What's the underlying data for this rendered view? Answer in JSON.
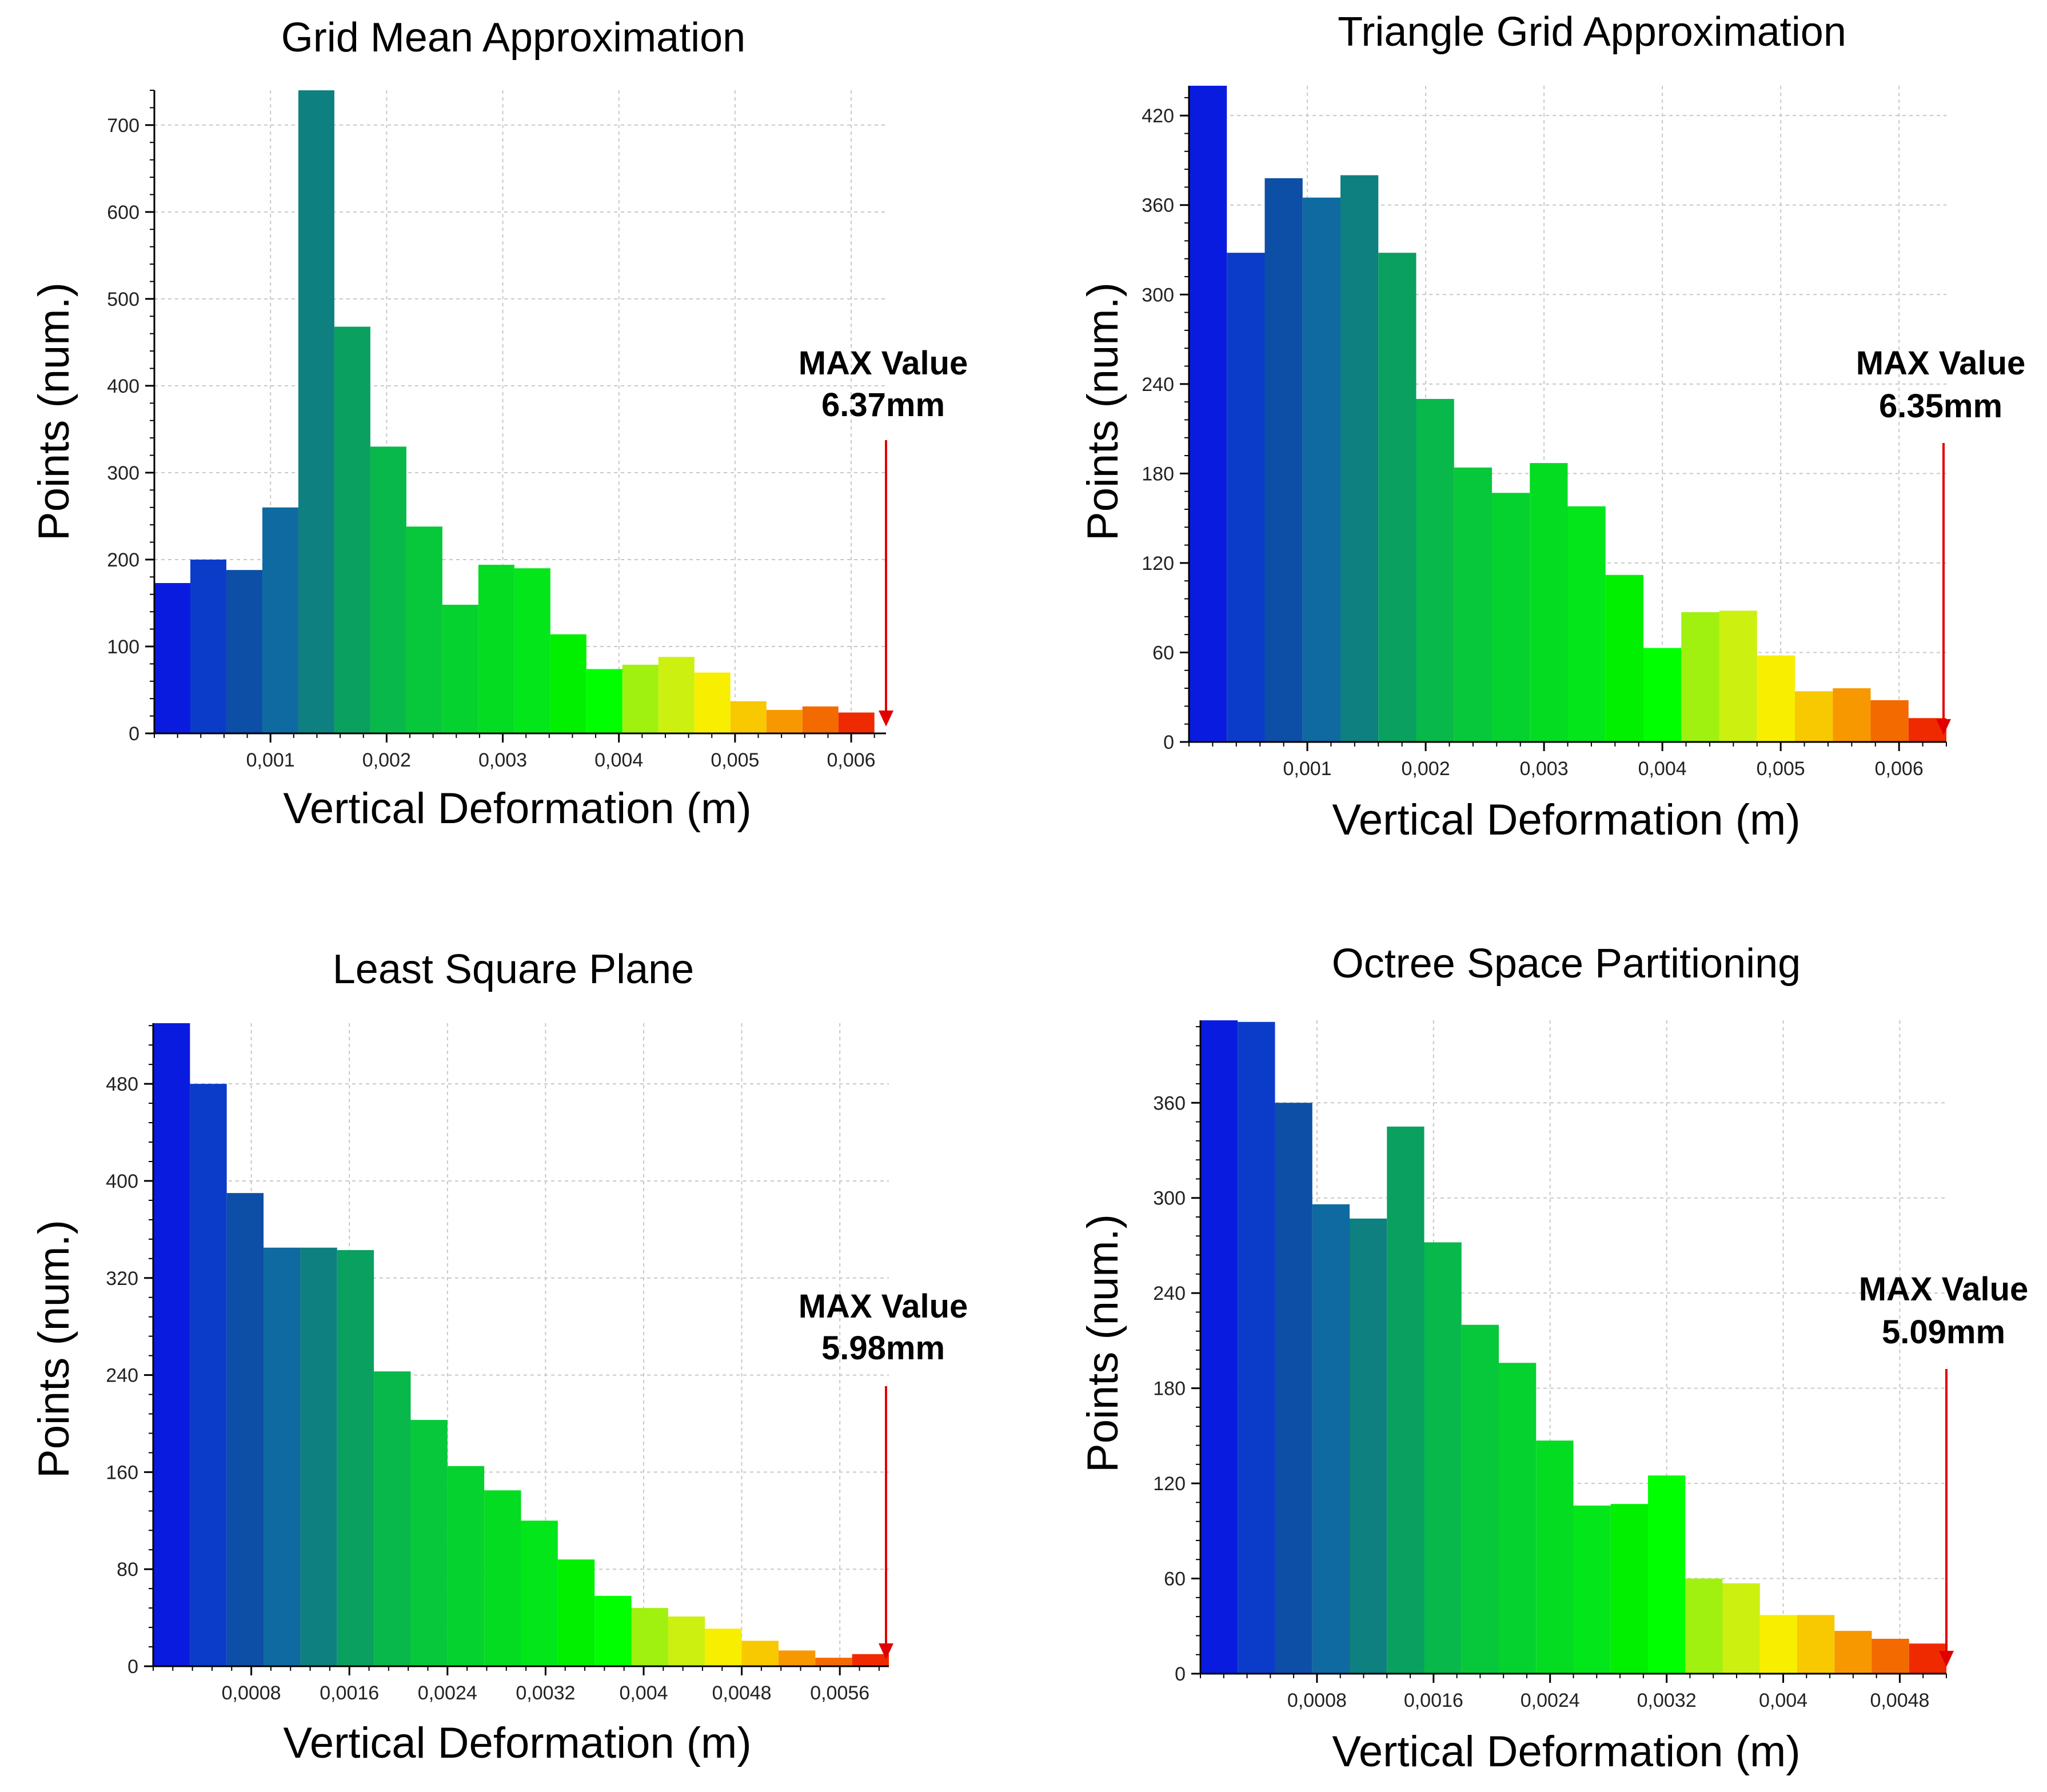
{
  "chart_data": [
    {
      "type": "bar",
      "title": "Grid Mean Approximation",
      "xlabel": "Vertical Deformation (m)",
      "ylabel": "Points (num.)",
      "x_range": [
        0,
        0.0063
      ],
      "ylim": [
        0,
        740
      ],
      "bin_width": 0.00031,
      "x_ticks": [
        0.001,
        0.002,
        0.003,
        0.004,
        0.005,
        0.006
      ],
      "x_tick_labels": [
        "0,001",
        "0,002",
        "0,003",
        "0,004",
        "0,005",
        "0,006"
      ],
      "y_ticks": [
        0,
        100,
        200,
        300,
        400,
        500,
        600,
        700
      ],
      "y_tick_labels": [
        "0",
        "100",
        "200",
        "300",
        "400",
        "500",
        "600",
        "700"
      ],
      "values": [
        173,
        200,
        188,
        260,
        740,
        468,
        330,
        238,
        148,
        194,
        190,
        114,
        74,
        79,
        88,
        70,
        37,
        27,
        31,
        24
      ],
      "colors": [
        "#0a1be0",
        "#0b3cc9",
        "#0d4ea6",
        "#0e6aa0",
        "#0e8080",
        "#0aa060",
        "#08b84a",
        "#06c83a",
        "#05d22e",
        "#04dc22",
        "#02e61a",
        "#00f000",
        "#00ff00",
        "#a0f010",
        "#ccf010",
        "#f8ee00",
        "#f8c800",
        "#f89800",
        "#f26a00",
        "#ef2a00"
      ],
      "max_label_line1": "MAX Value",
      "max_label_line2": "6.37mm"
    },
    {
      "type": "bar",
      "title": "Triangle Grid Approximation",
      "xlabel": "Vertical Deformation (m)",
      "ylabel": "Points (num.)",
      "x_range": [
        0,
        0.0064
      ],
      "ylim": [
        0,
        440
      ],
      "bin_width": 0.00032,
      "x_ticks": [
        0.001,
        0.002,
        0.003,
        0.004,
        0.005,
        0.006
      ],
      "x_tick_labels": [
        "0,001",
        "0,002",
        "0,003",
        "0,004",
        "0,005",
        "0,006"
      ],
      "y_ticks": [
        0,
        60,
        120,
        180,
        240,
        300,
        360,
        420
      ],
      "y_tick_labels": [
        "0",
        "60",
        "120",
        "180",
        "240",
        "300",
        "360",
        "420"
      ],
      "values": [
        440,
        328,
        378,
        365,
        380,
        328,
        230,
        184,
        167,
        187,
        158,
        112,
        63,
        87,
        88,
        58,
        34,
        36,
        28,
        16
      ],
      "colors": [
        "#0a1be0",
        "#0b3cc9",
        "#0d4ea6",
        "#0e6aa0",
        "#0e8080",
        "#0aa060",
        "#08b84a",
        "#06c83a",
        "#05d22e",
        "#04dc22",
        "#02e61a",
        "#00f000",
        "#00ff00",
        "#a0f010",
        "#ccf010",
        "#f8ee00",
        "#f8c800",
        "#f89800",
        "#f26a00",
        "#ef2a00"
      ],
      "max_label_line1": "MAX Value",
      "max_label_line2": "6.35mm"
    },
    {
      "type": "bar",
      "title": "Least Square Plane",
      "xlabel": "Vertical Deformation (m)",
      "ylabel": "Points (num.)",
      "x_range": [
        0,
        0.006
      ],
      "ylim": [
        0,
        530
      ],
      "bin_width": 0.0003,
      "x_ticks": [
        0.0008,
        0.0016,
        0.0024,
        0.0032,
        0.004,
        0.0048,
        0.0056
      ],
      "x_tick_labels": [
        "0,0008",
        "0,0016",
        "0,0024",
        "0,0032",
        "0,004",
        "0,0048",
        "0,0056"
      ],
      "y_ticks": [
        0,
        80,
        160,
        240,
        320,
        400,
        480
      ],
      "y_tick_labels": [
        "0",
        "80",
        "160",
        "240",
        "320",
        "400",
        "480"
      ],
      "values": [
        530,
        480,
        390,
        345,
        345,
        343,
        243,
        203,
        165,
        145,
        120,
        88,
        58,
        48,
        41,
        31,
        21,
        13,
        7,
        10
      ],
      "colors": [
        "#0a1be0",
        "#0b3cc9",
        "#0d4ea6",
        "#0e6aa0",
        "#0e8080",
        "#0aa060",
        "#08b84a",
        "#06c83a",
        "#05d22e",
        "#04dc22",
        "#02e61a",
        "#00f000",
        "#00ff00",
        "#a0f010",
        "#ccf010",
        "#f8ee00",
        "#f8c800",
        "#f89800",
        "#f26a00",
        "#ef2a00"
      ],
      "max_label_line1": "MAX Value",
      "max_label_line2": "5.98mm"
    },
    {
      "type": "bar",
      "title": "Octree Space Partitioning",
      "xlabel": "Vertical Deformation (m)",
      "ylabel": "Points (num.)",
      "x_range": [
        0,
        0.00512
      ],
      "ylim": [
        0,
        412
      ],
      "bin_width": 0.000256,
      "x_ticks": [
        0.0008,
        0.0016,
        0.0024,
        0.0032,
        0.004,
        0.0048
      ],
      "x_tick_labels": [
        "0,0008",
        "0,0016",
        "0,0024",
        "0,0032",
        "0,004",
        "0,0048"
      ],
      "y_ticks": [
        0,
        60,
        120,
        180,
        240,
        300,
        360
      ],
      "y_tick_labels": [
        "0",
        "60",
        "120",
        "180",
        "240",
        "300",
        "360"
      ],
      "values": [
        412,
        411,
        360,
        296,
        287,
        345,
        272,
        220,
        196,
        147,
        106,
        107,
        125,
        60,
        57,
        37,
        37,
        27,
        22,
        19
      ],
      "colors": [
        "#0a1be0",
        "#0b3cc9",
        "#0d4ea6",
        "#0e6aa0",
        "#0e8080",
        "#0aa060",
        "#08b84a",
        "#06c83a",
        "#05d22e",
        "#04dc22",
        "#02e61a",
        "#00f000",
        "#00ff00",
        "#a0f010",
        "#ccf010",
        "#f8ee00",
        "#f8c800",
        "#f89800",
        "#f26a00",
        "#ef2a00"
      ],
      "max_label_line1": "MAX Value",
      "max_label_line2": "5.09mm"
    }
  ],
  "colors": {
    "arrow": "#e00000",
    "axis": "#000000",
    "grid": "#c8c8c8"
  }
}
